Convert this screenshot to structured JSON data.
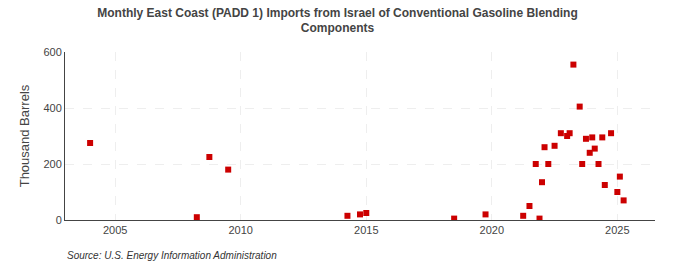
{
  "chart_data": {
    "type": "scatter",
    "title": "Monthly East Coast (PADD 1) Imports from Israel of Conventional Gasoline Blending\nComponents",
    "ylabel": "Thousand Barrels",
    "annotations": [
      "Source: U.S. Energy Information Administration"
    ],
    "x": [
      2004.0,
      2008.25,
      2008.75,
      2009.5,
      2014.25,
      2014.75,
      2015.0,
      2018.5,
      2019.75,
      2021.25,
      2021.5,
      2021.75,
      2021.9,
      2022.0,
      2022.1,
      2022.25,
      2022.5,
      2022.75,
      2023.0,
      2023.1,
      2023.25,
      2023.5,
      2023.6,
      2023.75,
      2023.9,
      2024.0,
      2024.1,
      2024.25,
      2024.4,
      2024.5,
      2024.75,
      2025.0,
      2025.1,
      2025.25
    ],
    "values": [
      275,
      10,
      225,
      180,
      15,
      20,
      25,
      5,
      20,
      15,
      50,
      200,
      5,
      135,
      260,
      200,
      265,
      310,
      300,
      310,
      555,
      405,
      200,
      290,
      240,
      295,
      255,
      200,
      295,
      125,
      310,
      100,
      155,
      70
    ],
    "color": "#cc0000",
    "marker": "square",
    "xlim": [
      2003.0,
      2026.5
    ],
    "ylim": [
      0,
      600
    ],
    "xticks": [
      2005,
      2010,
      2015,
      2020,
      2025
    ],
    "yticks": [
      0,
      200,
      400,
      600
    ],
    "grid": true
  }
}
